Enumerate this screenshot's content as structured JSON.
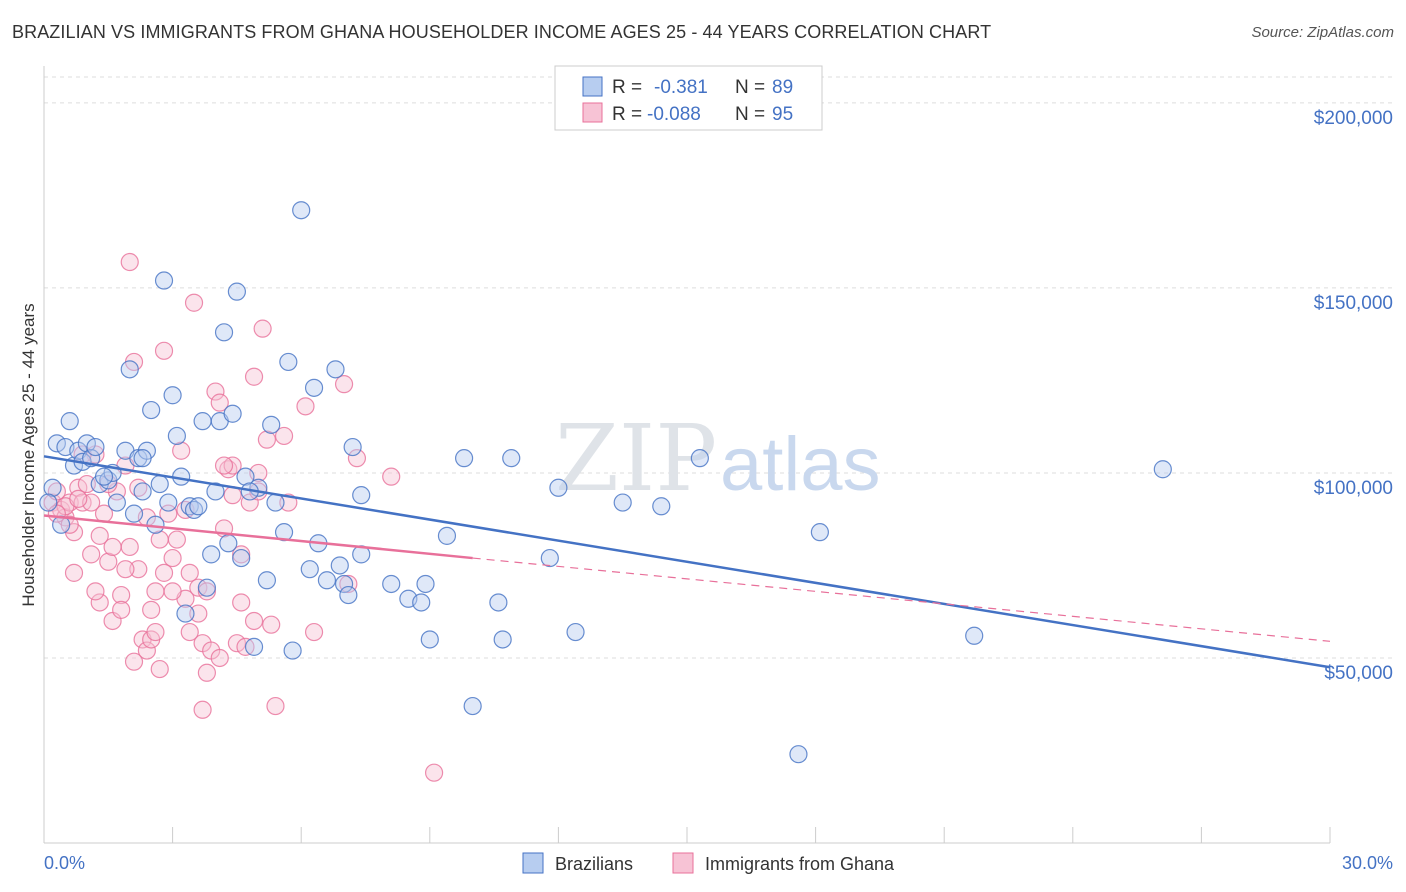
{
  "header": {
    "title": "BRAZILIAN VS IMMIGRANTS FROM GHANA HOUSEHOLDER INCOME AGES 25 - 44 YEARS CORRELATION CHART",
    "source": "Source: ZipAtlas.com"
  },
  "watermark": {
    "part1": "ZIP",
    "part2": "atlas"
  },
  "legend": {
    "r_label": "R =",
    "n_label": "N =",
    "rows": [
      {
        "r": "-0.381",
        "n": "89"
      },
      {
        "r": "-0.088",
        "n": "95"
      }
    ]
  },
  "colors": {
    "brazilian": "#4472c4",
    "brazilian_fill": "#b7cdf0",
    "ghana": "#e8709a",
    "ghana_fill": "#f7c3d5",
    "grid": "#dddddd",
    "axis": "#cccccc"
  },
  "chart_data": {
    "type": "scatter",
    "title": "BRAZILIAN VS IMMIGRANTS FROM GHANA HOUSEHOLDER INCOME AGES 25 - 44 YEARS CORRELATION CHART",
    "xlabel": "",
    "ylabel": "Householder Income Ages 25 - 44 years",
    "xlim": [
      0,
      30
    ],
    "ylim": [
      0,
      207000
    ],
    "x_tick_labels": [
      "0.0%",
      "30.0%"
    ],
    "y_ticks": [
      50000,
      100000,
      150000,
      200000
    ],
    "y_tick_labels": [
      "$50,000",
      "$100,000",
      "$150,000",
      "$200,000"
    ],
    "grid": true,
    "legend_position": "top-center",
    "series": [
      {
        "name": "Brazilians",
        "color": "#4472c4",
        "trend": {
          "x": [
            0,
            30
          ],
          "y": [
            104500,
            47500
          ],
          "dashed_extension": false
        },
        "points": [
          [
            0.3,
            108000
          ],
          [
            0.5,
            107000
          ],
          [
            0.6,
            114000
          ],
          [
            0.7,
            102000
          ],
          [
            0.8,
            106000
          ],
          [
            0.9,
            103000
          ],
          [
            1.0,
            108000
          ],
          [
            1.1,
            104000
          ],
          [
            1.2,
            107000
          ],
          [
            1.3,
            97000
          ],
          [
            1.5,
            98000
          ],
          [
            1.6,
            100000
          ],
          [
            1.7,
            92000
          ],
          [
            1.9,
            106000
          ],
          [
            2.0,
            128000
          ],
          [
            2.1,
            89000
          ],
          [
            2.2,
            104000
          ],
          [
            2.3,
            95000
          ],
          [
            2.4,
            106000
          ],
          [
            2.5,
            117000
          ],
          [
            2.6,
            86000
          ],
          [
            2.7,
            97000
          ],
          [
            2.8,
            152000
          ],
          [
            2.9,
            92000
          ],
          [
            3.0,
            121000
          ],
          [
            3.1,
            110000
          ],
          [
            3.2,
            99000
          ],
          [
            3.3,
            62000
          ],
          [
            3.4,
            91000
          ],
          [
            3.5,
            90000
          ],
          [
            3.7,
            114000
          ],
          [
            3.8,
            69000
          ],
          [
            3.9,
            78000
          ],
          [
            4.0,
            95000
          ],
          [
            4.1,
            114000
          ],
          [
            4.2,
            138000
          ],
          [
            4.3,
            81000
          ],
          [
            4.4,
            116000
          ],
          [
            4.5,
            149000
          ],
          [
            4.6,
            77000
          ],
          [
            4.7,
            99000
          ],
          [
            4.9,
            53000
          ],
          [
            5.0,
            96000
          ],
          [
            5.2,
            71000
          ],
          [
            5.3,
            113000
          ],
          [
            5.4,
            92000
          ],
          [
            5.6,
            84000
          ],
          [
            5.7,
            130000
          ],
          [
            5.8,
            52000
          ],
          [
            6.0,
            171000
          ],
          [
            6.2,
            74000
          ],
          [
            6.3,
            123000
          ],
          [
            6.4,
            81000
          ],
          [
            6.6,
            71000
          ],
          [
            6.8,
            128000
          ],
          [
            7.0,
            70000
          ],
          [
            7.1,
            67000
          ],
          [
            7.2,
            107000
          ],
          [
            7.4,
            94000
          ],
          [
            7.4,
            78000
          ],
          [
            8.1,
            70000
          ],
          [
            8.5,
            66000
          ],
          [
            8.8,
            65000
          ],
          [
            8.9,
            70000
          ],
          [
            9.0,
            55000
          ],
          [
            9.4,
            83000
          ],
          [
            9.8,
            104000
          ],
          [
            10.0,
            37000
          ],
          [
            10.6,
            65000
          ],
          [
            10.7,
            55000
          ],
          [
            10.9,
            104000
          ],
          [
            11.8,
            77000
          ],
          [
            12.0,
            96000
          ],
          [
            12.4,
            57000
          ],
          [
            13.5,
            92000
          ],
          [
            14.4,
            91000
          ],
          [
            15.3,
            104000
          ],
          [
            17.6,
            24000
          ],
          [
            18.1,
            84000
          ],
          [
            21.7,
            56000
          ],
          [
            26.1,
            101000
          ],
          [
            0.2,
            96000
          ],
          [
            0.4,
            86000
          ],
          [
            0.1,
            92000
          ],
          [
            1.4,
            99000
          ],
          [
            2.3,
            104000
          ],
          [
            3.6,
            91000
          ],
          [
            4.8,
            95000
          ],
          [
            6.9,
            75000
          ]
        ]
      },
      {
        "name": "Immigrants from Ghana",
        "color": "#e8709a",
        "trend": {
          "x": [
            0,
            10,
            30
          ],
          "y": [
            88500,
            77000,
            54500
          ],
          "dashed_extension": true
        },
        "points": [
          [
            0.2,
            92000
          ],
          [
            0.3,
            95000
          ],
          [
            0.4,
            90000
          ],
          [
            0.5,
            88000
          ],
          [
            0.6,
            92000
          ],
          [
            0.7,
            84000
          ],
          [
            0.7,
            73000
          ],
          [
            0.8,
            96000
          ],
          [
            0.9,
            92000
          ],
          [
            1.0,
            97000
          ],
          [
            1.1,
            78000
          ],
          [
            1.2,
            105000
          ],
          [
            1.3,
            65000
          ],
          [
            1.4,
            89000
          ],
          [
            1.5,
            76000
          ],
          [
            1.6,
            60000
          ],
          [
            1.7,
            95000
          ],
          [
            1.8,
            67000
          ],
          [
            1.9,
            102000
          ],
          [
            2.0,
            80000
          ],
          [
            2.0,
            157000
          ],
          [
            2.1,
            130000
          ],
          [
            2.2,
            74000
          ],
          [
            2.3,
            55000
          ],
          [
            2.4,
            52000
          ],
          [
            2.5,
            63000
          ],
          [
            2.6,
            68000
          ],
          [
            2.7,
            47000
          ],
          [
            2.8,
            133000
          ],
          [
            2.9,
            89000
          ],
          [
            3.0,
            77000
          ],
          [
            3.1,
            82000
          ],
          [
            3.2,
            106000
          ],
          [
            3.3,
            66000
          ],
          [
            3.4,
            73000
          ],
          [
            3.5,
            146000
          ],
          [
            3.6,
            69000
          ],
          [
            3.7,
            54000
          ],
          [
            3.7,
            36000
          ],
          [
            3.8,
            68000
          ],
          [
            3.9,
            52000
          ],
          [
            4.0,
            122000
          ],
          [
            4.1,
            119000
          ],
          [
            4.2,
            85000
          ],
          [
            4.3,
            101000
          ],
          [
            4.4,
            102000
          ],
          [
            4.5,
            54000
          ],
          [
            4.6,
            65000
          ],
          [
            4.7,
            53000
          ],
          [
            4.8,
            92000
          ],
          [
            4.9,
            126000
          ],
          [
            5.0,
            95000
          ],
          [
            5.1,
            139000
          ],
          [
            5.2,
            109000
          ],
          [
            5.3,
            59000
          ],
          [
            5.4,
            37000
          ],
          [
            5.7,
            92000
          ],
          [
            6.1,
            118000
          ],
          [
            7.0,
            124000
          ],
          [
            7.1,
            70000
          ],
          [
            7.3,
            104000
          ],
          [
            8.1,
            99000
          ],
          [
            9.1,
            19000
          ],
          [
            0.9,
            105000
          ],
          [
            1.6,
            80000
          ],
          [
            2.2,
            96000
          ],
          [
            2.7,
            82000
          ],
          [
            3.3,
            90000
          ],
          [
            4.2,
            102000
          ],
          [
            5.0,
            100000
          ],
          [
            1.1,
            92000
          ],
          [
            1.8,
            63000
          ],
          [
            2.5,
            55000
          ],
          [
            3.0,
            68000
          ],
          [
            3.8,
            46000
          ],
          [
            4.6,
            78000
          ],
          [
            5.6,
            110000
          ],
          [
            0.5,
            91000
          ],
          [
            1.3,
            83000
          ],
          [
            2.8,
            73000
          ],
          [
            0.3,
            89000
          ],
          [
            0.8,
            93000
          ],
          [
            1.5,
            97000
          ],
          [
            2.1,
            49000
          ],
          [
            2.6,
            57000
          ],
          [
            3.4,
            57000
          ],
          [
            4.1,
            50000
          ],
          [
            4.9,
            60000
          ],
          [
            1.9,
            74000
          ],
          [
            0.6,
            86000
          ],
          [
            1.2,
            68000
          ],
          [
            2.4,
            88000
          ],
          [
            3.6,
            62000
          ],
          [
            4.4,
            94000
          ],
          [
            6.3,
            57000
          ]
        ]
      }
    ]
  },
  "bottom_legend": [
    "Brazilians",
    "Immigrants from Ghana"
  ]
}
